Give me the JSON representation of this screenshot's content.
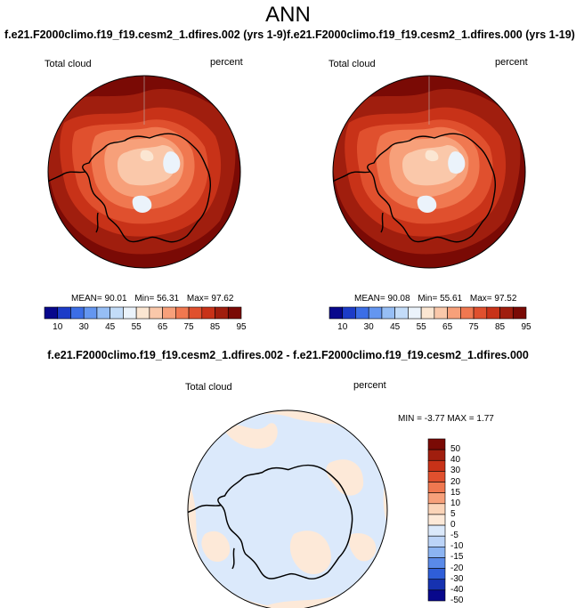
{
  "figure": {
    "title": "ANN",
    "left_panel": {
      "case": "f.e21.F2000climo.f19_f19.cesm2_1.dfires.002 (yrs 1-9)",
      "variable": "Total cloud",
      "units": "percent",
      "stats": {
        "mean": "90.01",
        "min": "56.31",
        "max": "97.62"
      }
    },
    "right_panel": {
      "case": "f.e21.F2000climo.f19_f19.cesm2_1.dfires.000 (yrs 1-19)",
      "variable": "Total cloud",
      "units": "percent",
      "stats": {
        "mean": "90.08",
        "min": "55.61",
        "max": "97.52"
      }
    },
    "diff_panel": {
      "title": "f.e21.F2000climo.f19_f19.cesm2_1.dfires.002 - f.e21.F2000climo.f19_f19.cesm2_1.dfires.000",
      "variable": "Total cloud",
      "units": "percent",
      "stats": {
        "min": "-3.77",
        "max": "1.77"
      }
    },
    "labels": {
      "mean": "MEAN=",
      "min": "Min=",
      "max": "Max=",
      "MIN": "MIN =",
      "MAX": "MAX ="
    }
  },
  "chart_data": [
    {
      "type": "heatmap",
      "projection": "south-polar-stereographic",
      "title": "f.e21.F2000climo.f19_f19.cesm2_1.dfires.002 (yrs 1-9)",
      "variable": "Total cloud",
      "units": "percent",
      "colorbar_levels": [
        10,
        20,
        30,
        40,
        45,
        50,
        55,
        60,
        65,
        70,
        75,
        80,
        85,
        90,
        95
      ],
      "colorbar_tick_labels": [
        "10",
        "30",
        "45",
        "55",
        "65",
        "75",
        "85",
        "95"
      ],
      "mean": 90.01,
      "min": 56.31,
      "max": 97.62
    },
    {
      "type": "heatmap",
      "projection": "south-polar-stereographic",
      "title": "f.e21.F2000climo.f19_f19.cesm2_1.dfires.000 (yrs 1-19)",
      "variable": "Total cloud",
      "units": "percent",
      "colorbar_levels": [
        10,
        20,
        30,
        40,
        45,
        50,
        55,
        60,
        65,
        70,
        75,
        80,
        85,
        90,
        95
      ],
      "colorbar_tick_labels": [
        "10",
        "30",
        "45",
        "55",
        "65",
        "75",
        "85",
        "95"
      ],
      "mean": 90.08,
      "min": 55.61,
      "max": 97.52
    },
    {
      "type": "heatmap",
      "projection": "south-polar-stereographic",
      "title": "f.e21.F2000climo.f19_f19.cesm2_1.dfires.002 - f.e21.F2000climo.f19_f19.cesm2_1.dfires.000",
      "variable": "Total cloud",
      "units": "percent",
      "colorbar_levels": [
        50,
        40,
        30,
        20,
        15,
        10,
        5,
        0,
        -5,
        -10,
        -15,
        -20,
        -30,
        -40,
        -50
      ],
      "colorbar_tick_labels": [
        "50",
        "40",
        "30",
        "20",
        "15",
        "10",
        "5",
        "0",
        "-5",
        "-10",
        "-15",
        "-20",
        "-30",
        "-40",
        "-50"
      ],
      "min": -3.77,
      "max": 1.77
    }
  ],
  "colors": {
    "abs_scale": [
      "#08088c",
      "#1c3cc8",
      "#3c6ee6",
      "#6496f0",
      "#96bef5",
      "#c3dcf8",
      "#ebf3fb",
      "#fbe6d2",
      "#fac8aa",
      "#f7a07a",
      "#f07850",
      "#e0502e",
      "#c83218",
      "#a01e0e",
      "#7a0a05"
    ],
    "diff_scale": [
      "#7a0a05",
      "#a01e0e",
      "#c83218",
      "#e0502e",
      "#f07850",
      "#f7a07a",
      "#fbd4b8",
      "#fde9d8",
      "#dbe9fb",
      "#bcd4f8",
      "#8cb4f2",
      "#5a8ae8",
      "#2f5ed8",
      "#1632b0",
      "#08088c"
    ],
    "coast": "#000000",
    "diff_ocean": "#fde9d8",
    "diff_land": "#dbe9fb"
  }
}
